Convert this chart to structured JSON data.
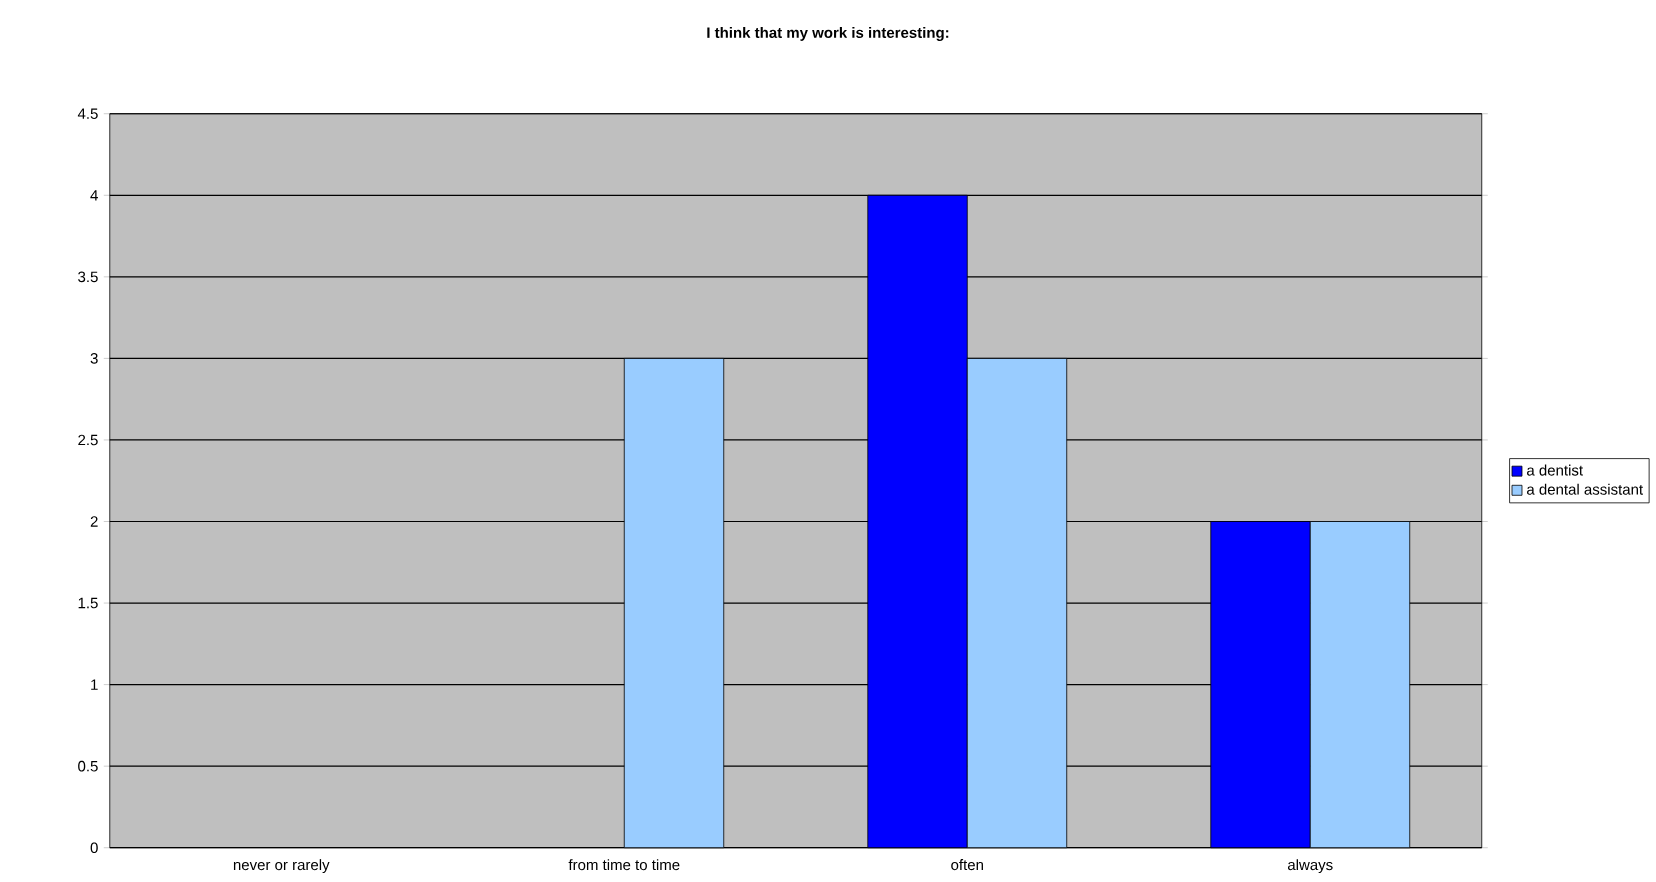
{
  "chart_data": {
    "type": "bar",
    "title": "I think that my work is interesting:",
    "categories": [
      "never or rarely",
      "from time to time",
      "often",
      "always"
    ],
    "series": [
      {
        "name": "a dentist",
        "color": "#0000ff",
        "values": [
          null,
          null,
          4,
          2
        ]
      },
      {
        "name": "a dental assistant",
        "color": "#99ccff",
        "values": [
          null,
          3,
          3,
          2
        ]
      }
    ],
    "ylim": [
      0,
      4.5
    ],
    "yticks": [
      0,
      0.5,
      1,
      1.5,
      2,
      2.5,
      3,
      3.5,
      4,
      4.5
    ],
    "grid": "y",
    "legend": "right"
  }
}
